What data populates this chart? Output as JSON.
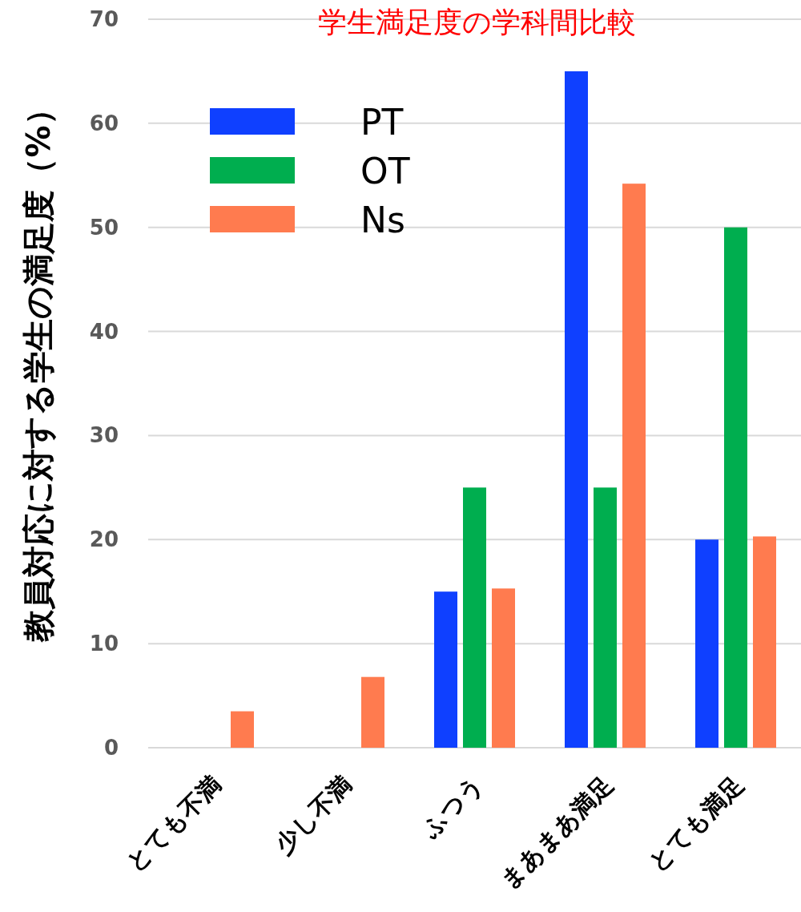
{
  "chart_data": {
    "type": "bar",
    "title": "学生満足度の学科間比較",
    "ylabel": "教員対応に対する学生の満足度（%）",
    "categories": [
      "とても不満",
      "少し不満",
      "ふつう",
      "まあまあ満足",
      "とても満足"
    ],
    "series": [
      {
        "name": "PT",
        "color": "#0f40ff",
        "values": [
          0,
          0,
          15,
          65,
          20
        ]
      },
      {
        "name": "OT",
        "color": "#00ae4f",
        "values": [
          0,
          0,
          25,
          25,
          50
        ]
      },
      {
        "name": "Ns",
        "color": "#ff7b4f",
        "values": [
          3.5,
          6.8,
          15.3,
          54.2,
          20.3
        ]
      }
    ],
    "ylim": [
      0,
      70
    ],
    "yticks": [
      0,
      10,
      20,
      30,
      40,
      50,
      60,
      70
    ],
    "grid": "y",
    "legend": "top left"
  }
}
